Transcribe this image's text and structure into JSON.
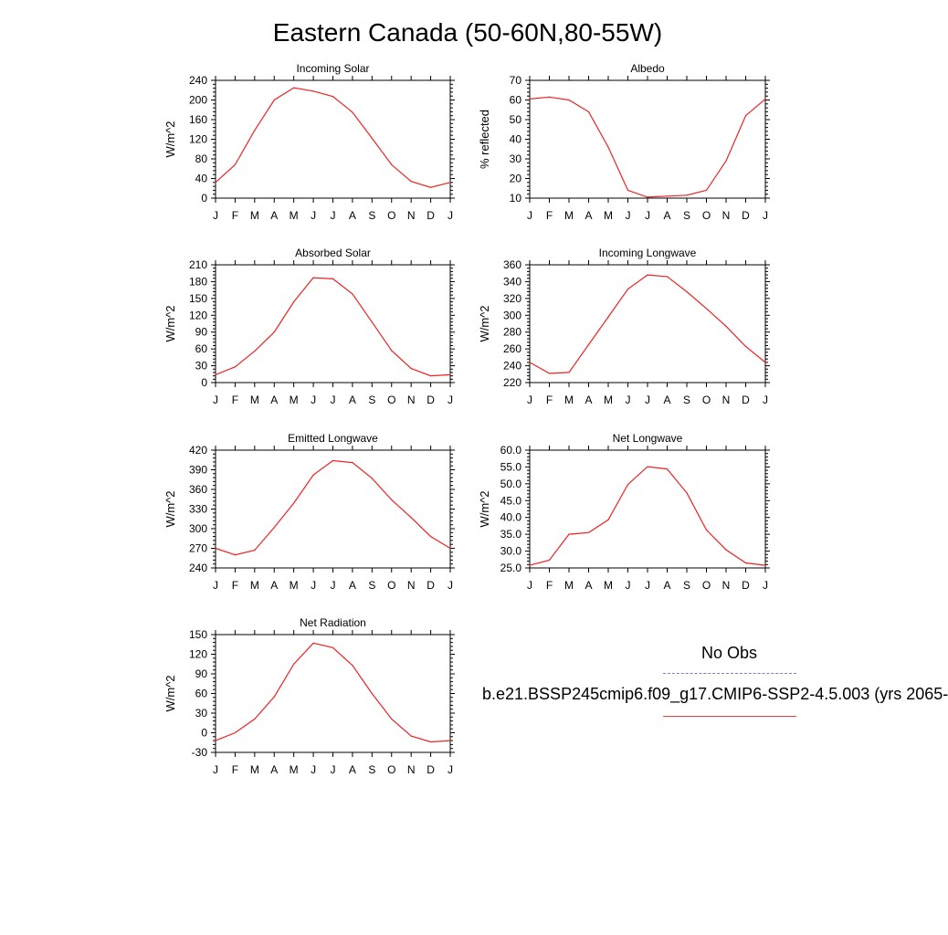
{
  "title": "Eastern Canada (50-60N,80-55W)",
  "colors": {
    "model_line": "#ee2222",
    "obs_line": "#7b7bd6"
  },
  "legend": {
    "header": "No Obs",
    "model_label": "b.e21.BSSP245cmip6.f09_g17.CMIP6-SSP2-4.5.003 (yrs 2065-"
  },
  "chart_data": [
    {
      "type": "line",
      "title": "Incoming Solar",
      "ylabel": "W/m^2",
      "categories": [
        "J",
        "F",
        "M",
        "A",
        "M",
        "J",
        "J",
        "A",
        "S",
        "O",
        "N",
        "D",
        "J"
      ],
      "ylim": [
        0,
        240
      ],
      "yticks": [
        "0",
        "40",
        "80",
        "120",
        "160",
        "200",
        "240"
      ],
      "values": [
        32,
        68,
        138,
        200,
        225,
        218,
        207,
        175,
        122,
        68,
        34,
        22,
        32
      ]
    },
    {
      "type": "line",
      "title": "Albedo",
      "ylabel": "% reflected",
      "categories": [
        "J",
        "F",
        "M",
        "A",
        "M",
        "J",
        "J",
        "A",
        "S",
        "O",
        "N",
        "D",
        "J"
      ],
      "ylim": [
        10,
        70
      ],
      "yticks": [
        "10",
        "20",
        "30",
        "40",
        "50",
        "60",
        "70"
      ],
      "values": [
        60.5,
        61.5,
        60,
        54,
        36,
        14,
        10.5,
        11,
        11.5,
        14,
        29,
        52,
        60.5
      ]
    },
    {
      "type": "line",
      "title": "Absorbed Solar",
      "ylabel": "W/m^2",
      "categories": [
        "J",
        "F",
        "M",
        "A",
        "M",
        "J",
        "J",
        "A",
        "S",
        "O",
        "N",
        "D",
        "J"
      ],
      "ylim": [
        0,
        210
      ],
      "yticks": [
        "0",
        "30",
        "60",
        "90",
        "120",
        "150",
        "180",
        "210"
      ],
      "values": [
        14,
        28,
        56,
        90,
        144,
        187,
        185,
        158,
        108,
        57,
        25,
        12,
        14
      ]
    },
    {
      "type": "line",
      "title": "Incoming Longwave",
      "ylabel": "W/m^2",
      "categories": [
        "J",
        "F",
        "M",
        "A",
        "M",
        "J",
        "J",
        "A",
        "S",
        "O",
        "N",
        "D",
        "J"
      ],
      "ylim": [
        220,
        360
      ],
      "yticks": [
        "220",
        "240",
        "260",
        "280",
        "300",
        "320",
        "340",
        "360"
      ],
      "values": [
        244,
        231,
        232,
        265,
        298,
        331,
        348,
        346,
        328,
        308,
        287,
        263,
        244
      ]
    },
    {
      "type": "line",
      "title": "Emitted Longwave",
      "ylabel": "W/m^2",
      "categories": [
        "J",
        "F",
        "M",
        "A",
        "M",
        "J",
        "J",
        "A",
        "S",
        "O",
        "N",
        "D",
        "J"
      ],
      "ylim": [
        240,
        420
      ],
      "yticks": [
        "240",
        "270",
        "300",
        "330",
        "360",
        "390",
        "420"
      ],
      "values": [
        270,
        260,
        267,
        302,
        339,
        382,
        404,
        401,
        377,
        344,
        317,
        288,
        270
      ]
    },
    {
      "type": "line",
      "title": "Net Longwave",
      "ylabel": "W/m^2",
      "categories": [
        "J",
        "F",
        "M",
        "A",
        "M",
        "J",
        "J",
        "A",
        "S",
        "O",
        "N",
        "D",
        "J"
      ],
      "ylim": [
        25,
        60
      ],
      "yticks": [
        "25.0",
        "30.0",
        "35.0",
        "40.0",
        "45.0",
        "50.0",
        "55.0",
        "60.0"
      ],
      "values": [
        25.8,
        27.3,
        35,
        35.5,
        39.3,
        49.8,
        55.1,
        54.4,
        47.3,
        36.3,
        30.4,
        26.5,
        25.8
      ]
    },
    {
      "type": "line",
      "title": "Net Radiation",
      "ylabel": "W/m^2",
      "categories": [
        "J",
        "F",
        "M",
        "A",
        "M",
        "J",
        "J",
        "A",
        "S",
        "O",
        "N",
        "D",
        "J"
      ],
      "ylim": [
        -30,
        150
      ],
      "yticks": [
        "-30",
        "0",
        "30",
        "60",
        "90",
        "120",
        "150"
      ],
      "values": [
        -12,
        0,
        21,
        55,
        105,
        137,
        130,
        103,
        60,
        21,
        -5,
        -14,
        -12
      ]
    }
  ]
}
